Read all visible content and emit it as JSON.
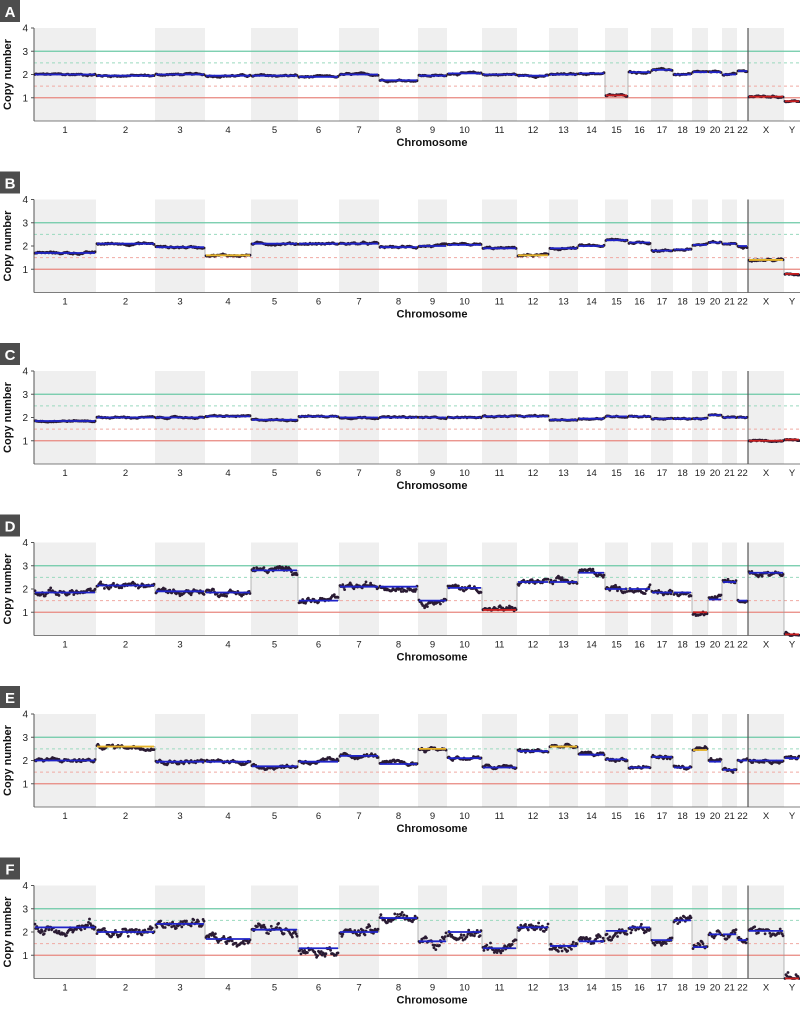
{
  "colors": {
    "band": "#efefef",
    "axis": "#555555",
    "gain_line": "#6cc9a6",
    "loss_line": "#e8877f",
    "gain_dash": "#9ad9bf",
    "loss_dash": "#f0aaa3",
    "segment": "#1f23c8",
    "segment_gain_minor": "#e6b42a",
    "segment_loss": "#c81e1e",
    "points": "#2a1b33",
    "connector": "#9a9a9a",
    "sex_divider": "#555555",
    "badge_bg": "#4d4d4d",
    "badge_text": "#ffffff"
  },
  "chart_data": [
    {
      "panel": "A",
      "type": "scatter",
      "xlabel": "Chromosome",
      "ylabel": "Copy number",
      "ylim": [
        0,
        4
      ],
      "yticks": [
        1,
        2,
        3,
        4
      ],
      "chromosomes": [
        "1",
        "2",
        "3",
        "4",
        "5",
        "6",
        "7",
        "8",
        "9",
        "10",
        "11",
        "12",
        "13",
        "14",
        "15",
        "16",
        "17",
        "18",
        "19",
        "20",
        "21",
        "22",
        "X",
        "Y"
      ],
      "reference_lines": {
        "gain": 3,
        "loss": 1,
        "gain_minor": 2.5,
        "loss_minor": 1.5
      },
      "segments": [
        {
          "chr": "1",
          "cn": 2.0
        },
        {
          "chr": "2",
          "cn": 1.95
        },
        {
          "chr": "3",
          "cn": 2.0
        },
        {
          "chr": "4",
          "cn": 1.95
        },
        {
          "chr": "5",
          "cn": 1.95
        },
        {
          "chr": "6",
          "cn": 1.9
        },
        {
          "chr": "7",
          "cn": 2.0
        },
        {
          "chr": "8",
          "cn": 1.75
        },
        {
          "chr": "9",
          "cn": 1.95
        },
        {
          "chr": "10",
          "cn": 2.05
        },
        {
          "chr": "11",
          "cn": 2.0
        },
        {
          "chr": "12",
          "cn": 1.95
        },
        {
          "chr": "13",
          "cn": 2.0
        },
        {
          "chr": "14",
          "cn": 2.05
        },
        {
          "chr": "15",
          "cn": 1.1
        },
        {
          "chr": "16",
          "cn": 2.1
        },
        {
          "chr": "17",
          "cn": 2.2
        },
        {
          "chr": "18",
          "cn": 2.0
        },
        {
          "chr": "19",
          "cn": 2.1
        },
        {
          "chr": "20",
          "cn": 2.1
        },
        {
          "chr": "21",
          "cn": 2.0
        },
        {
          "chr": "22",
          "cn": 2.15
        },
        {
          "chr": "X",
          "cn": 1.05
        },
        {
          "chr": "Y",
          "cn": 0.85
        }
      ]
    },
    {
      "panel": "B",
      "type": "scatter",
      "xlabel": "Chromosome",
      "ylabel": "Copy number",
      "ylim": [
        0,
        4
      ],
      "yticks": [
        1,
        2,
        3,
        4
      ],
      "chromosomes": [
        "1",
        "2",
        "3",
        "4",
        "5",
        "6",
        "7",
        "8",
        "9",
        "10",
        "11",
        "12",
        "13",
        "14",
        "15",
        "16",
        "17",
        "18",
        "19",
        "20",
        "21",
        "22",
        "X",
        "Y"
      ],
      "reference_lines": {
        "gain": 3,
        "loss": 1,
        "gain_minor": 2.5,
        "loss_minor": 1.5
      },
      "segments": [
        {
          "chr": "1",
          "cn": 1.7
        },
        {
          "chr": "2",
          "cn": 2.1
        },
        {
          "chr": "3",
          "cn": 1.95
        },
        {
          "chr": "4",
          "cn": 1.6
        },
        {
          "chr": "5",
          "cn": 2.1
        },
        {
          "chr": "6",
          "cn": 2.1
        },
        {
          "chr": "7",
          "cn": 2.1
        },
        {
          "chr": "8",
          "cn": 1.95
        },
        {
          "chr": "9",
          "cn": 2.0
        },
        {
          "chr": "10",
          "cn": 2.05
        },
        {
          "chr": "11",
          "cn": 1.9
        },
        {
          "chr": "12",
          "cn": 1.6
        },
        {
          "chr": "13",
          "cn": 1.9
        },
        {
          "chr": "14",
          "cn": 2.0
        },
        {
          "chr": "15",
          "cn": 2.25
        },
        {
          "chr": "16",
          "cn": 2.15
        },
        {
          "chr": "17",
          "cn": 1.8
        },
        {
          "chr": "18",
          "cn": 1.85
        },
        {
          "chr": "19",
          "cn": 2.05
        },
        {
          "chr": "20",
          "cn": 2.15
        },
        {
          "chr": "21",
          "cn": 2.1
        },
        {
          "chr": "22",
          "cn": 2.0
        },
        {
          "chr": "X",
          "cn": 1.4
        },
        {
          "chr": "Y",
          "cn": 0.8
        }
      ]
    },
    {
      "panel": "C",
      "type": "scatter",
      "xlabel": "Chromosome",
      "ylabel": "Copy number",
      "ylim": [
        0,
        4
      ],
      "yticks": [
        1,
        2,
        3,
        4
      ],
      "chromosomes": [
        "1",
        "2",
        "3",
        "4",
        "5",
        "6",
        "7",
        "8",
        "9",
        "10",
        "11",
        "12",
        "13",
        "14",
        "15",
        "16",
        "17",
        "18",
        "19",
        "20",
        "21",
        "22",
        "X",
        "Y"
      ],
      "reference_lines": {
        "gain": 3,
        "loss": 1,
        "gain_minor": 2.5,
        "loss_minor": 1.5
      },
      "segments": [
        {
          "chr": "1",
          "cn": 1.85
        },
        {
          "chr": "2",
          "cn": 2.0
        },
        {
          "chr": "3",
          "cn": 2.0
        },
        {
          "chr": "4",
          "cn": 2.05
        },
        {
          "chr": "5",
          "cn": 1.9
        },
        {
          "chr": "6",
          "cn": 2.05
        },
        {
          "chr": "7",
          "cn": 2.0
        },
        {
          "chr": "8",
          "cn": 2.0
        },
        {
          "chr": "9",
          "cn": 2.0
        },
        {
          "chr": "10",
          "cn": 2.0
        },
        {
          "chr": "11",
          "cn": 2.05
        },
        {
          "chr": "12",
          "cn": 2.05
        },
        {
          "chr": "13",
          "cn": 1.9
        },
        {
          "chr": "14",
          "cn": 1.95
        },
        {
          "chr": "15",
          "cn": 2.05
        },
        {
          "chr": "16",
          "cn": 2.05
        },
        {
          "chr": "17",
          "cn": 1.95
        },
        {
          "chr": "18",
          "cn": 1.95
        },
        {
          "chr": "19",
          "cn": 1.95
        },
        {
          "chr": "20",
          "cn": 2.1
        },
        {
          "chr": "21",
          "cn": 2.0
        },
        {
          "chr": "22",
          "cn": 2.0
        },
        {
          "chr": "X",
          "cn": 1.0
        },
        {
          "chr": "Y",
          "cn": 1.05
        }
      ]
    },
    {
      "panel": "D",
      "type": "scatter",
      "xlabel": "Chromosome",
      "ylabel": "Copy number",
      "ylim": [
        0,
        4
      ],
      "yticks": [
        1,
        2,
        3,
        4
      ],
      "chromosomes": [
        "1",
        "2",
        "3",
        "4",
        "5",
        "6",
        "7",
        "8",
        "9",
        "10",
        "11",
        "12",
        "13",
        "14",
        "15",
        "16",
        "17",
        "18",
        "19",
        "20",
        "21",
        "22",
        "X",
        "Y"
      ],
      "reference_lines": {
        "gain": 3,
        "loss": 1,
        "gain_minor": 2.5,
        "loss_minor": 1.5
      },
      "segments": [
        {
          "chr": "1",
          "cn": 1.85
        },
        {
          "chr": "2",
          "cn": 2.15
        },
        {
          "chr": "3",
          "cn": 1.9
        },
        {
          "chr": "4",
          "cn": 1.85
        },
        {
          "chr": "5",
          "cn": 2.8
        },
        {
          "chr": "6",
          "cn": 1.5
        },
        {
          "chr": "7",
          "cn": 2.1
        },
        {
          "chr": "8",
          "cn": 2.1
        },
        {
          "chr": "9",
          "cn": 1.5
        },
        {
          "chr": "10",
          "cn": 2.05
        },
        {
          "chr": "11",
          "cn": 1.1
        },
        {
          "chr": "12",
          "cn": 2.3
        },
        {
          "chr": "13",
          "cn": 2.3
        },
        {
          "chr": "14",
          "cn": 2.7
        },
        {
          "chr": "15",
          "cn": 2.0
        },
        {
          "chr": "16",
          "cn": 2.0
        },
        {
          "chr": "17",
          "cn": 1.85
        },
        {
          "chr": "18",
          "cn": 1.85
        },
        {
          "chr": "19",
          "cn": 1.0
        },
        {
          "chr": "20",
          "cn": 1.55
        },
        {
          "chr": "21",
          "cn": 2.3
        },
        {
          "chr": "22",
          "cn": 1.5
        },
        {
          "chr": "X",
          "cn": 2.7
        },
        {
          "chr": "Y",
          "cn": 0.05
        }
      ]
    },
    {
      "panel": "E",
      "type": "scatter",
      "xlabel": "Chromosome",
      "ylabel": "Copy number",
      "ylim": [
        0,
        4
      ],
      "yticks": [
        1,
        2,
        3,
        4
      ],
      "chromosomes": [
        "1",
        "2",
        "3",
        "4",
        "5",
        "6",
        "7",
        "8",
        "9",
        "10",
        "11",
        "12",
        "13",
        "14",
        "15",
        "16",
        "17",
        "18",
        "19",
        "20",
        "21",
        "22",
        "X",
        "Y"
      ],
      "reference_lines": {
        "gain": 3,
        "loss": 1,
        "gain_minor": 2.5,
        "loss_minor": 1.5
      },
      "segments": [
        {
          "chr": "1",
          "cn": 2.0
        },
        {
          "chr": "2",
          "cn": 2.6
        },
        {
          "chr": "3",
          "cn": 1.95
        },
        {
          "chr": "4",
          "cn": 1.95
        },
        {
          "chr": "5",
          "cn": 1.75
        },
        {
          "chr": "6",
          "cn": 1.95
        },
        {
          "chr": "7",
          "cn": 2.2
        },
        {
          "chr": "8",
          "cn": 1.85
        },
        {
          "chr": "9",
          "cn": 2.5
        },
        {
          "chr": "10",
          "cn": 2.1
        },
        {
          "chr": "11",
          "cn": 1.7
        },
        {
          "chr": "12",
          "cn": 2.4
        },
        {
          "chr": "13",
          "cn": 2.6
        },
        {
          "chr": "14",
          "cn": 2.25
        },
        {
          "chr": "15",
          "cn": 2.05
        },
        {
          "chr": "16",
          "cn": 1.7
        },
        {
          "chr": "17",
          "cn": 2.15
        },
        {
          "chr": "18",
          "cn": 1.7
        },
        {
          "chr": "19",
          "cn": 2.45
        },
        {
          "chr": "20",
          "cn": 1.95
        },
        {
          "chr": "21",
          "cn": 1.6
        },
        {
          "chr": "22",
          "cn": 2.0
        },
        {
          "chr": "X",
          "cn": 2.0
        },
        {
          "chr": "Y",
          "cn": 2.1
        }
      ]
    },
    {
      "panel": "F",
      "type": "scatter",
      "xlabel": "Chromosome",
      "ylabel": "Copy number",
      "ylim": [
        0,
        4
      ],
      "yticks": [
        1,
        2,
        3,
        4
      ],
      "chromosomes": [
        "1",
        "2",
        "3",
        "4",
        "5",
        "6",
        "7",
        "8",
        "9",
        "10",
        "11",
        "12",
        "13",
        "14",
        "15",
        "16",
        "17",
        "18",
        "19",
        "20",
        "21",
        "22",
        "X",
        "Y"
      ],
      "reference_lines": {
        "gain": 3,
        "loss": 1,
        "gain_minor": 2.5,
        "loss_minor": 1.5
      },
      "segments": [
        {
          "chr": "1",
          "cn": 2.2
        },
        {
          "chr": "2",
          "cn": 2.0
        },
        {
          "chr": "3",
          "cn": 2.35
        },
        {
          "chr": "4",
          "cn": 1.7
        },
        {
          "chr": "5",
          "cn": 2.1
        },
        {
          "chr": "6",
          "cn": 1.3
        },
        {
          "chr": "7",
          "cn": 2.0
        },
        {
          "chr": "8",
          "cn": 2.6
        },
        {
          "chr": "9",
          "cn": 1.6
        },
        {
          "chr": "10",
          "cn": 2.0
        },
        {
          "chr": "11",
          "cn": 1.3
        },
        {
          "chr": "12",
          "cn": 2.2
        },
        {
          "chr": "13",
          "cn": 1.4
        },
        {
          "chr": "14",
          "cn": 1.6
        },
        {
          "chr": "15",
          "cn": 2.05
        },
        {
          "chr": "16",
          "cn": 2.2
        },
        {
          "chr": "17",
          "cn": 1.65
        },
        {
          "chr": "18",
          "cn": 2.5
        },
        {
          "chr": "19",
          "cn": 1.35
        },
        {
          "chr": "20",
          "cn": 1.9
        },
        {
          "chr": "21",
          "cn": 1.9
        },
        {
          "chr": "22",
          "cn": 1.65
        },
        {
          "chr": "X",
          "cn": 2.05
        },
        {
          "chr": "Y",
          "cn": 0.0
        }
      ]
    }
  ]
}
